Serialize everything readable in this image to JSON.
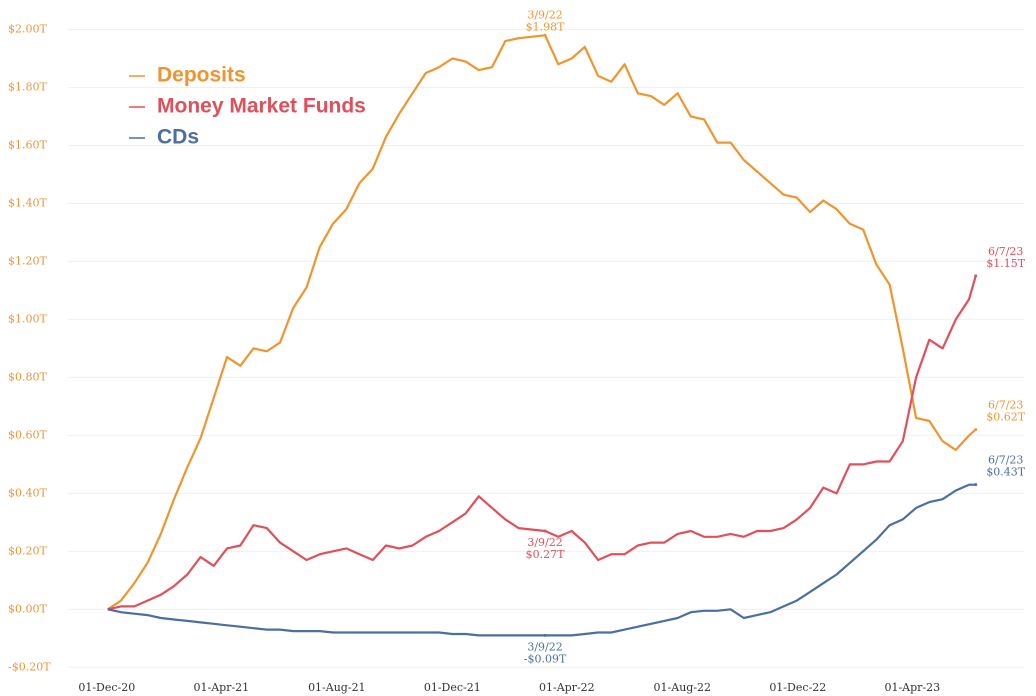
{
  "chart_data": {
    "type": "line",
    "x": [
      "2020-12-02",
      "2020-12-16",
      "2020-12-30",
      "2021-01-13",
      "2021-01-27",
      "2021-02-10",
      "2021-02-24",
      "2021-03-10",
      "2021-03-24",
      "2021-04-07",
      "2021-04-21",
      "2021-05-05",
      "2021-05-19",
      "2021-06-02",
      "2021-06-16",
      "2021-06-30",
      "2021-07-14",
      "2021-07-28",
      "2021-08-11",
      "2021-08-25",
      "2021-09-08",
      "2021-09-22",
      "2021-10-06",
      "2021-10-20",
      "2021-11-03",
      "2021-11-17",
      "2021-12-01",
      "2021-12-15",
      "2021-12-29",
      "2022-01-12",
      "2022-01-26",
      "2022-02-09",
      "2022-03-09",
      "2022-03-23",
      "2022-04-06",
      "2022-04-20",
      "2022-05-04",
      "2022-05-18",
      "2022-06-01",
      "2022-06-15",
      "2022-06-29",
      "2022-07-13",
      "2022-07-27",
      "2022-08-10",
      "2022-08-24",
      "2022-09-07",
      "2022-09-21",
      "2022-10-05",
      "2022-10-19",
      "2022-11-02",
      "2022-11-16",
      "2022-11-30",
      "2022-12-14",
      "2022-12-28",
      "2023-01-11",
      "2023-01-25",
      "2023-02-08",
      "2023-02-22",
      "2023-03-08",
      "2023-03-22",
      "2023-04-05",
      "2023-04-19",
      "2023-05-03",
      "2023-05-17",
      "2023-05-31",
      "2023-06-07"
    ],
    "series": [
      {
        "name": "Deposits",
        "color": "#f0952e",
        "values": [
          0,
          0.03,
          0.09,
          0.16,
          0.26,
          0.38,
          0.49,
          0.59,
          0.73,
          0.87,
          0.84,
          0.9,
          0.89,
          0.92,
          1.04,
          1.11,
          1.25,
          1.33,
          1.38,
          1.47,
          1.52,
          1.63,
          1.71,
          1.78,
          1.85,
          1.87,
          1.9,
          1.89,
          1.86,
          1.87,
          1.96,
          1.97,
          1.98,
          1.88,
          1.9,
          1.94,
          1.84,
          1.82,
          1.88,
          1.78,
          1.77,
          1.74,
          1.78,
          1.7,
          1.69,
          1.61,
          1.61,
          1.55,
          1.51,
          1.47,
          1.43,
          1.42,
          1.37,
          1.41,
          1.38,
          1.33,
          1.31,
          1.19,
          1.12,
          0.9,
          0.66,
          0.65,
          0.58,
          0.55,
          0.6,
          0.62
        ],
        "annotations": [
          {
            "x": "2022-03-09",
            "y": 1.98,
            "text": [
              "3/9/22",
              "$1.98T"
            ]
          },
          {
            "x": "2023-06-07",
            "y": 0.62,
            "text": [
              "6/7/23",
              "$0.62T"
            ]
          }
        ]
      },
      {
        "name": "Money Market Funds",
        "color": "#e0505a",
        "values": [
          0,
          0.01,
          0.01,
          0.03,
          0.05,
          0.08,
          0.12,
          0.18,
          0.15,
          0.21,
          0.22,
          0.29,
          0.28,
          0.23,
          0.2,
          0.17,
          0.19,
          0.2,
          0.21,
          0.19,
          0.17,
          0.22,
          0.21,
          0.22,
          0.25,
          0.27,
          0.3,
          0.33,
          0.39,
          0.35,
          0.31,
          0.28,
          0.27,
          0.25,
          0.27,
          0.23,
          0.17,
          0.19,
          0.19,
          0.22,
          0.23,
          0.23,
          0.26,
          0.27,
          0.25,
          0.25,
          0.26,
          0.25,
          0.27,
          0.27,
          0.28,
          0.31,
          0.35,
          0.42,
          0.4,
          0.5,
          0.5,
          0.51,
          0.51,
          0.58,
          0.8,
          0.93,
          0.9,
          1.0,
          1.07,
          1.15
        ],
        "annotations": [
          {
            "x": "2022-03-09",
            "y": 0.27,
            "text": [
              "3/9/22",
              "$0.27T"
            ]
          },
          {
            "x": "2023-06-07",
            "y": 1.15,
            "text": [
              "6/7/23",
              "$1.15T"
            ]
          }
        ]
      },
      {
        "name": "CDs",
        "color": "#4a6fa0",
        "values": [
          0,
          -0.01,
          -0.015,
          -0.02,
          -0.03,
          -0.035,
          -0.04,
          -0.045,
          -0.05,
          -0.055,
          -0.06,
          -0.065,
          -0.07,
          -0.07,
          -0.075,
          -0.075,
          -0.075,
          -0.08,
          -0.08,
          -0.08,
          -0.08,
          -0.08,
          -0.08,
          -0.08,
          -0.08,
          -0.08,
          -0.085,
          -0.085,
          -0.09,
          -0.09,
          -0.09,
          -0.09,
          -0.09,
          -0.09,
          -0.09,
          -0.085,
          -0.08,
          -0.08,
          -0.07,
          -0.06,
          -0.05,
          -0.04,
          -0.03,
          -0.01,
          -0.005,
          -0.005,
          0,
          -0.03,
          -0.02,
          -0.01,
          0.01,
          0.03,
          0.06,
          0.09,
          0.12,
          0.16,
          0.2,
          0.24,
          0.29,
          0.31,
          0.35,
          0.37,
          0.38,
          0.41,
          0.43,
          0.43
        ],
        "annotations": [
          {
            "x": "2022-03-09",
            "y": -0.09,
            "text": [
              "3/9/22",
              "-$0.09T"
            ]
          },
          {
            "x": "2023-06-07",
            "y": 0.43,
            "text": [
              "6/7/23",
              "$0.43T"
            ]
          }
        ]
      }
    ],
    "xlim": [
      "2020-10-21",
      "2023-07-28"
    ],
    "xticks": [
      {
        "value": "2020-12-01",
        "label": "01-Dec-20"
      },
      {
        "value": "2021-04-01",
        "label": "01-Apr-21"
      },
      {
        "value": "2021-08-01",
        "label": "01-Aug-21"
      },
      {
        "value": "2021-12-01",
        "label": "01-Dec-21"
      },
      {
        "value": "2022-04-01",
        "label": "01-Apr-22"
      },
      {
        "value": "2022-08-01",
        "label": "01-Aug-22"
      },
      {
        "value": "2022-12-01",
        "label": "01-Dec-22"
      },
      {
        "value": "2023-04-01",
        "label": "01-Apr-23"
      }
    ],
    "ylim": [
      -0.23,
      2.05
    ],
    "yticks": [
      {
        "value": -0.2,
        "label": "-$0.20T"
      },
      {
        "value": 0,
        "label": "$0.00T"
      },
      {
        "value": 0.2,
        "label": "$0.20T"
      },
      {
        "value": 0.4,
        "label": "$0.40T"
      },
      {
        "value": 0.6,
        "label": "$0.60T"
      },
      {
        "value": 0.8,
        "label": "$0.80T"
      },
      {
        "value": 1.0,
        "label": "$1.00T"
      },
      {
        "value": 1.2,
        "label": "$1.20T"
      },
      {
        "value": 1.4,
        "label": "$1.40T"
      },
      {
        "value": 1.6,
        "label": "$1.60T"
      },
      {
        "value": 1.8,
        "label": "$1.80T"
      },
      {
        "value": 2.0,
        "label": "$2.00T"
      }
    ],
    "ytick_color": "#e8963a",
    "grid": true,
    "legend": "upper left"
  }
}
